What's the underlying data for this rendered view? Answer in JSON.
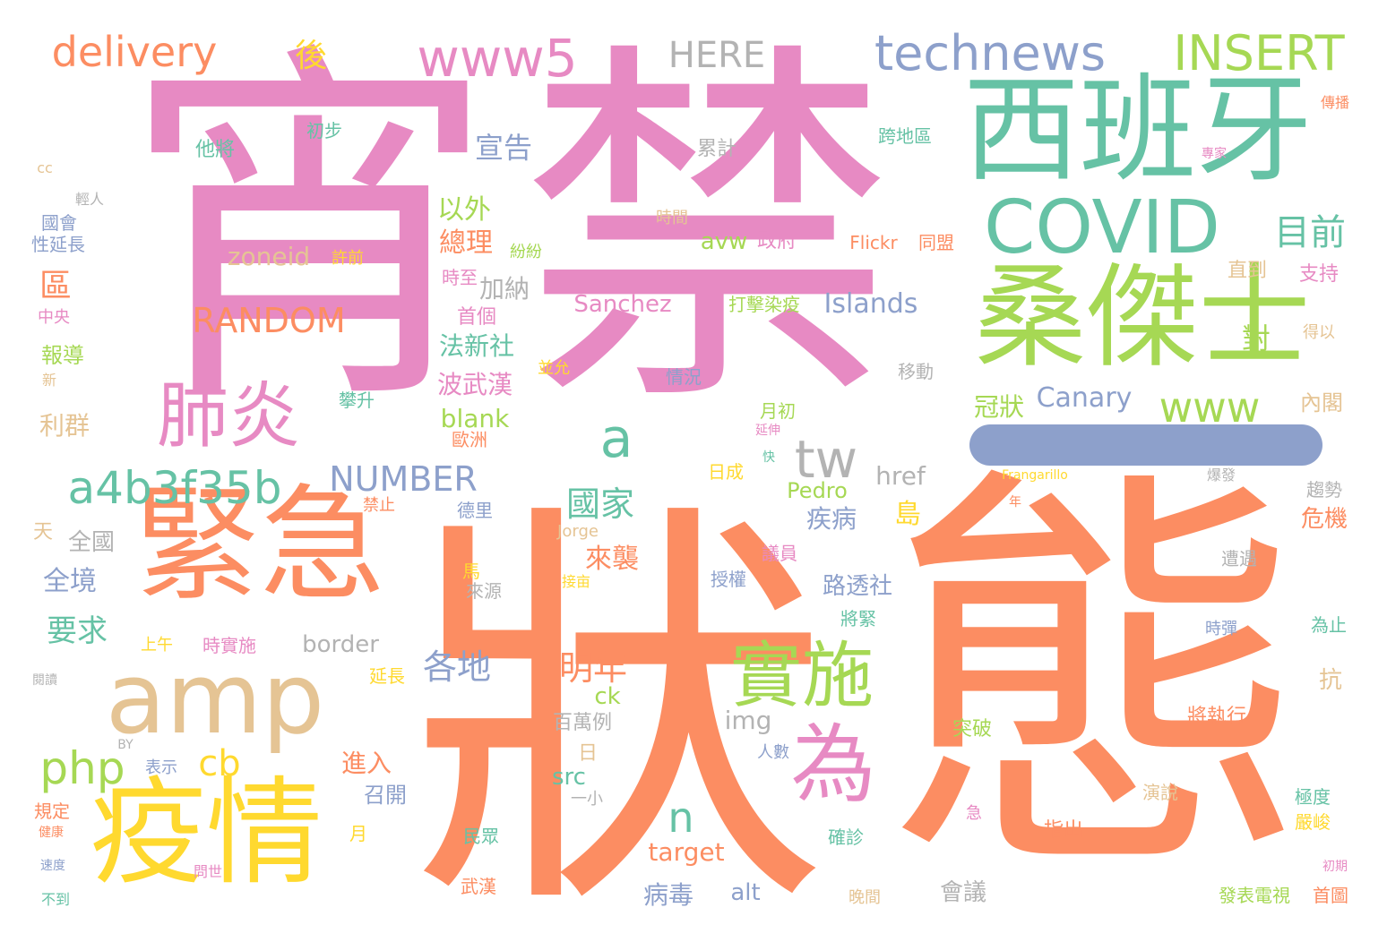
{
  "colors": {
    "pink": "#e78ac3",
    "orange": "#fc8d62",
    "teal": "#66c2a5",
    "green": "#a6d854",
    "blue": "#8da0cb",
    "yellow": "#ffd92f",
    "tan": "#e5c494",
    "gray": "#b3b3b3"
  },
  "words": [
    {
      "text": "宵",
      "color": "pink"
    },
    {
      "text": "禁",
      "color": "pink"
    },
    {
      "text": "狀",
      "color": "orange"
    },
    {
      "text": "態",
      "color": "orange"
    },
    {
      "text": "西班牙",
      "color": "teal"
    },
    {
      "text": "桑傑士",
      "color": "green"
    },
    {
      "text": "COVID",
      "color": "teal"
    },
    {
      "text": "緊急",
      "color": "orange"
    },
    {
      "text": "疫情",
      "color": "yellow"
    },
    {
      "text": "amp",
      "color": "tan"
    },
    {
      "text": "肺炎",
      "color": "pink"
    },
    {
      "text": "為",
      "color": "pink"
    },
    {
      "text": "實施",
      "color": "green"
    },
    {
      "text": "www5",
      "color": "pink"
    },
    {
      "text": "technews",
      "color": "blue"
    },
    {
      "text": "INSERT",
      "color": "green"
    },
    {
      "text": "delivery",
      "color": "orange"
    },
    {
      "text": "HERE",
      "color": "gray"
    },
    {
      "text": "a4b3f35b",
      "color": "teal"
    },
    {
      "text": "www",
      "color": "green"
    },
    {
      "text": "RANDOM",
      "color": "orange"
    },
    {
      "text": "NUMBER",
      "color": "blue"
    },
    {
      "text": "php",
      "color": "green"
    },
    {
      "text": "cb",
      "color": "yellow"
    },
    {
      "text": "a",
      "color": "teal"
    },
    {
      "text": "tw",
      "color": "gray"
    },
    {
      "text": "n",
      "color": "teal"
    },
    {
      "text": "目前",
      "color": "teal"
    },
    {
      "text": "後",
      "color": "yellow"
    },
    {
      "text": "宣告",
      "color": "blue"
    },
    {
      "text": "國家",
      "color": "teal"
    },
    {
      "text": "各地",
      "color": "blue"
    },
    {
      "text": "明年",
      "color": "orange"
    },
    {
      "text": "區",
      "color": "orange"
    },
    {
      "text": "Canary",
      "color": "blue"
    },
    {
      "text": "Islands",
      "color": "blue"
    },
    {
      "text": "Sanchez",
      "color": "pink"
    },
    {
      "text": "zoneid",
      "color": "tan"
    },
    {
      "text": "avw",
      "color": "green"
    },
    {
      "text": "對",
      "color": "green"
    },
    {
      "text": "島",
      "color": "yellow"
    },
    {
      "text": "以外",
      "color": "green"
    },
    {
      "text": "總理",
      "color": "orange"
    },
    {
      "text": "加納",
      "color": "gray"
    },
    {
      "text": "法新社",
      "color": "teal"
    },
    {
      "text": "波武漢",
      "color": "pink"
    },
    {
      "text": "blank",
      "color": "green"
    },
    {
      "text": "冠狀",
      "color": "green"
    },
    {
      "text": "要求",
      "color": "teal"
    },
    {
      "text": "全境",
      "color": "blue"
    },
    {
      "text": "利群",
      "color": "tan"
    },
    {
      "text": "全國",
      "color": "gray"
    },
    {
      "text": "報導",
      "color": "green"
    },
    {
      "text": "來襲",
      "color": "orange"
    },
    {
      "text": "疾病",
      "color": "blue"
    },
    {
      "text": "路透社",
      "color": "blue"
    },
    {
      "text": "border",
      "color": "gray"
    },
    {
      "text": "href",
      "color": "gray"
    },
    {
      "text": "Pedro",
      "color": "green"
    },
    {
      "text": "img",
      "color": "gray"
    },
    {
      "text": "src",
      "color": "teal"
    },
    {
      "text": "ck",
      "color": "green"
    },
    {
      "text": "target",
      "color": "orange"
    },
    {
      "text": "alt",
      "color": "blue"
    },
    {
      "text": "病毒",
      "color": "blue"
    },
    {
      "text": "進入",
      "color": "orange"
    },
    {
      "text": "召開",
      "color": "blue"
    },
    {
      "text": "抗",
      "color": "tan"
    },
    {
      "text": "危機",
      "color": "orange"
    },
    {
      "text": "內閣",
      "color": "tan"
    },
    {
      "text": "將執行",
      "color": "orange"
    },
    {
      "text": "會議",
      "color": "gray"
    },
    {
      "text": "首個",
      "color": "pink"
    },
    {
      "text": "日",
      "color": "tan"
    },
    {
      "text": "百萬例",
      "color": "gray"
    },
    {
      "text": "政府",
      "color": "pink"
    },
    {
      "text": "打擊染疫",
      "color": "green"
    },
    {
      "text": "Flickr",
      "color": "orange"
    },
    {
      "text": "同盟",
      "color": "orange"
    },
    {
      "text": "直到",
      "color": "tan"
    },
    {
      "text": "支持",
      "color": "pink"
    },
    {
      "text": "得以",
      "color": "tan"
    },
    {
      "text": "傳播",
      "color": "orange"
    },
    {
      "text": "專家",
      "color": "pink"
    },
    {
      "text": "跨地區",
      "color": "teal"
    },
    {
      "text": "累計",
      "color": "gray"
    },
    {
      "text": "他將",
      "color": "teal"
    },
    {
      "text": "初步",
      "color": "teal"
    },
    {
      "text": "時間",
      "color": "tan"
    },
    {
      "text": "cc",
      "color": "tan"
    },
    {
      "text": "輕人",
      "color": "gray"
    },
    {
      "text": "國會",
      "color": "blue"
    },
    {
      "text": "性延長",
      "color": "blue"
    },
    {
      "text": "許前",
      "color": "yellow"
    },
    {
      "text": "紛紛",
      "color": "green"
    },
    {
      "text": "時至",
      "color": "pink"
    },
    {
      "text": "中央",
      "color": "pink"
    },
    {
      "text": "新",
      "color": "tan"
    },
    {
      "text": "並允",
      "color": "yellow"
    },
    {
      "text": "攀升",
      "color": "teal"
    },
    {
      "text": "情況",
      "color": "blue"
    },
    {
      "text": "移動",
      "color": "gray"
    },
    {
      "text": "月初",
      "color": "green"
    },
    {
      "text": "延伸",
      "color": "pink"
    },
    {
      "text": "歐洲",
      "color": "orange"
    },
    {
      "text": "快",
      "color": "teal"
    },
    {
      "text": "日成",
      "color": "yellow"
    },
    {
      "text": "Frangarillo",
      "color": "yellow"
    },
    {
      "text": "爆發",
      "color": "gray"
    },
    {
      "text": "年",
      "color": "orange"
    },
    {
      "text": "趨勢",
      "color": "gray"
    },
    {
      "text": "遭遇",
      "color": "gray"
    },
    {
      "text": "為止",
      "color": "teal"
    },
    {
      "text": "時彈",
      "color": "blue"
    },
    {
      "text": "天",
      "color": "tan"
    },
    {
      "text": "禁止",
      "color": "orange"
    },
    {
      "text": "德里",
      "color": "blue"
    },
    {
      "text": "Jorge",
      "color": "tan"
    },
    {
      "text": "議員",
      "color": "pink"
    },
    {
      "text": "馬",
      "color": "yellow"
    },
    {
      "text": "接亩",
      "color": "yellow"
    },
    {
      "text": "來源",
      "color": "gray"
    },
    {
      "text": "授權",
      "color": "blue"
    },
    {
      "text": "將緊",
      "color": "teal"
    },
    {
      "text": "上午",
      "color": "yellow"
    },
    {
      "text": "時實施",
      "color": "pink"
    },
    {
      "text": "延長",
      "color": "yellow"
    },
    {
      "text": "閱讀",
      "color": "gray"
    },
    {
      "text": "BY",
      "color": "gray"
    },
    {
      "text": "表示",
      "color": "blue"
    },
    {
      "text": "人數",
      "color": "blue"
    },
    {
      "text": "一小",
      "color": "gray"
    },
    {
      "text": "規定",
      "color": "orange"
    },
    {
      "text": "健康",
      "color": "orange"
    },
    {
      "text": "速度",
      "color": "blue"
    },
    {
      "text": "問世",
      "color": "pink"
    },
    {
      "text": "不到",
      "color": "teal"
    },
    {
      "text": "月",
      "color": "yellow"
    },
    {
      "text": "民眾",
      "color": "teal"
    },
    {
      "text": "武漢",
      "color": "orange"
    },
    {
      "text": "確診",
      "color": "teal"
    },
    {
      "text": "晚間",
      "color": "tan"
    },
    {
      "text": "突破",
      "color": "green"
    },
    {
      "text": "急",
      "color": "pink"
    },
    {
      "text": "指出",
      "color": "orange"
    },
    {
      "text": "演說",
      "color": "tan"
    },
    {
      "text": "極度",
      "color": "teal"
    },
    {
      "text": "嚴峻",
      "color": "yellow"
    },
    {
      "text": "發表電視",
      "color": "green"
    },
    {
      "text": "首圖",
      "color": "orange"
    },
    {
      "text": "初期",
      "color": "pink"
    }
  ]
}
